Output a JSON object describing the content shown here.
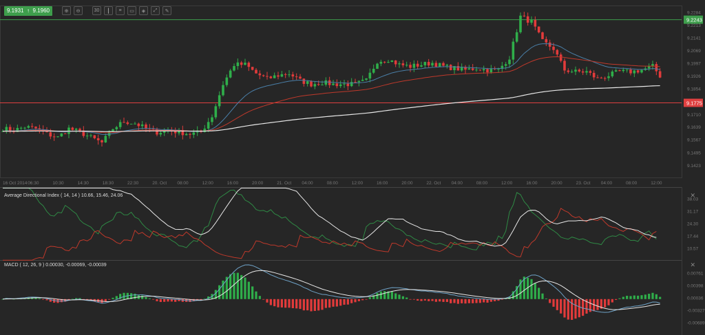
{
  "toolbar": {
    "bid": "9.1931",
    "direction_icon": "arrow-up-icon",
    "ask": "9.1960",
    "buttons": [
      {
        "name": "zoom-in-button",
        "icon": "zoom-in-icon",
        "label": ""
      },
      {
        "name": "zoom-out-button",
        "icon": "zoom-out-icon",
        "label": ""
      },
      {
        "name": "timeframe-button",
        "icon": "timeframe-icon",
        "label": "30"
      },
      {
        "name": "chart-type-button",
        "icon": "candles-icon",
        "label": ""
      },
      {
        "name": "indicators-button",
        "icon": "indicators-icon",
        "label": ""
      },
      {
        "name": "drawing-button",
        "icon": "drawing-icon",
        "label": ""
      },
      {
        "name": "templates-button",
        "icon": "layers-icon",
        "label": ""
      },
      {
        "name": "settings-button",
        "icon": "chart-settings-icon",
        "label": ""
      },
      {
        "name": "draw-line-button",
        "icon": "pencil-icon",
        "label": ""
      }
    ]
  },
  "colors": {
    "background": "#262626",
    "bull": "#2fae4a",
    "bear": "#e23b3b",
    "ema_fast": "#4a7fa8",
    "ema_slow": "#c0392b",
    "sma_long": "#e8e8e8",
    "resistance": "#3e9e4c",
    "support": "#e04040"
  },
  "chart_data": [
    {
      "type": "candlestick",
      "price_axis": [
        "9.2284",
        "9.2213",
        "9.2141",
        "9.2069",
        "9.1997",
        "9.1926",
        "9.1854",
        "9.1710",
        "9.1639",
        "9.1567",
        "9.1495",
        "9.1423"
      ],
      "ylim": [
        9.1423,
        9.2284
      ],
      "time_axis": [
        "16 Oct 2014",
        "06:30",
        "10:30",
        "14:30",
        "18:30",
        "22:30",
        "20. Oct",
        "08:00",
        "12:00",
        "16:00",
        "20:00",
        "21. Oct",
        "04:00",
        "08:00",
        "12:00",
        "16:00",
        "20:00",
        "22. Oct",
        "04:00",
        "08:00",
        "12:00",
        "16:00",
        "20:00",
        "23. Oct",
        "04:00",
        "08:00",
        "12:00"
      ],
      "close_path": [
        9.163,
        9.162,
        9.164,
        9.163,
        9.16,
        9.158,
        9.163,
        9.161,
        9.158,
        9.155,
        9.163,
        9.167,
        9.166,
        9.163,
        9.161,
        9.162,
        9.161,
        9.16,
        9.161,
        9.17,
        9.188,
        9.199,
        9.199,
        9.194,
        9.191,
        9.193,
        9.194,
        9.19,
        9.188,
        9.189,
        9.188,
        9.188,
        9.188,
        9.19,
        9.201,
        9.202,
        9.199,
        9.198,
        9.199,
        9.2,
        9.198,
        9.197,
        9.196,
        9.197,
        9.196,
        9.196,
        9.203,
        9.226,
        9.223,
        9.212,
        9.208,
        9.196,
        9.195,
        9.195,
        9.191,
        9.193,
        9.195,
        9.195,
        9.196,
        9.198,
        9.19
      ],
      "horizontal_lines": [
        {
          "label": "9.2243",
          "value": 9.2243,
          "color": "#3e9e4c"
        },
        {
          "label": "9.1775",
          "value": 9.1775,
          "color": "#e04040"
        }
      ],
      "overlays": [
        "EMA fast",
        "EMA slow",
        "SMA long"
      ]
    },
    {
      "type": "line",
      "title": "Average Directional Index ( 14, 14 ) 10.66, 15.46, 24.06",
      "axis": [
        "38.03",
        "31.17",
        "24.30",
        "17.44",
        "10.57"
      ],
      "ylim": [
        3.7,
        44.9
      ],
      "series_colors": [
        "#e8e8e8",
        "#2f8a45",
        "#c0392b"
      ]
    },
    {
      "type": "bar+line",
      "title": "MACD ( 12, 26, 9 ) 0.00030, -0.00069, -0.00039",
      "axis": [
        "0.00761",
        "0.00398",
        "0.00036",
        "-0.00327",
        "-0.00689"
      ],
      "ylim": [
        -0.0105,
        0.0112
      ]
    }
  ]
}
